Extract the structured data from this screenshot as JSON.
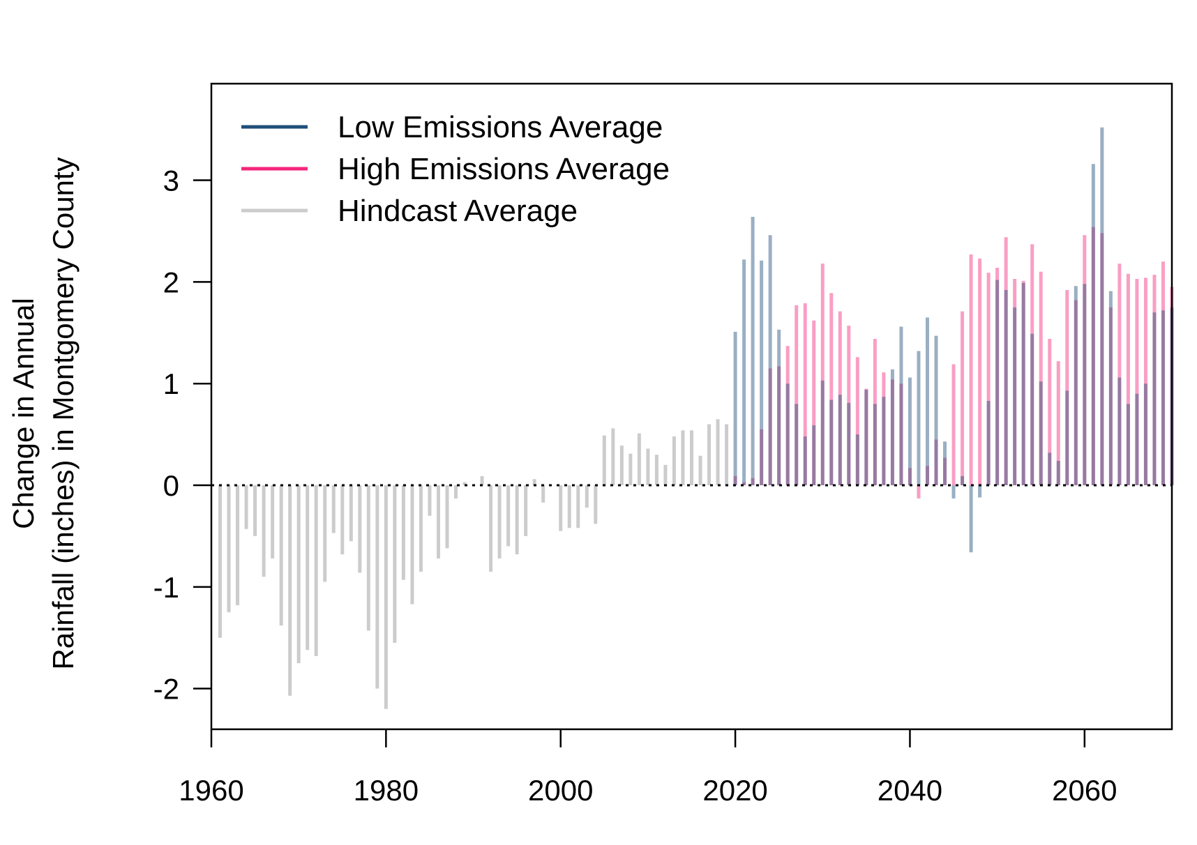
{
  "chart_data": {
    "type": "bar",
    "ylabel_line1": "Change in Annual",
    "ylabel_line2": "Rainfall (inches) in Montgomery County",
    "xlim": [
      1960,
      2070
    ],
    "ylim": [
      -2.4,
      3.95
    ],
    "x_ticks": [
      1960,
      1980,
      2000,
      2020,
      2040,
      2060
    ],
    "y_ticks": [
      -2,
      -1,
      0,
      1,
      2,
      3
    ],
    "zero_line": "dotted",
    "grid": false,
    "legend_position": "top-left",
    "series": [
      {
        "name": "Hindcast Average",
        "color": "#cccccc",
        "x": [
          1961,
          1962,
          1963,
          1964,
          1965,
          1966,
          1967,
          1968,
          1969,
          1970,
          1971,
          1972,
          1973,
          1974,
          1975,
          1976,
          1977,
          1978,
          1979,
          1980,
          1981,
          1982,
          1983,
          1984,
          1985,
          1986,
          1987,
          1988,
          1989,
          1990,
          1991,
          1992,
          1993,
          1994,
          1995,
          1996,
          1997,
          1998,
          1999,
          2000,
          2001,
          2002,
          2003,
          2004,
          2005,
          2006,
          2007,
          2008,
          2009,
          2010,
          2011,
          2012,
          2013,
          2014,
          2015,
          2016,
          2017,
          2018,
          2019
        ],
        "values": [
          -1.5,
          -1.25,
          -1.18,
          -0.43,
          -0.5,
          -0.9,
          -0.72,
          -1.38,
          -2.07,
          -1.75,
          -1.62,
          -1.68,
          -0.95,
          -0.47,
          -0.68,
          -0.55,
          -0.86,
          -1.43,
          -2.0,
          -2.2,
          -1.55,
          -0.93,
          -1.17,
          -0.85,
          -0.3,
          -0.72,
          -0.62,
          -0.13,
          0.03,
          0.0,
          0.09,
          -0.85,
          -0.72,
          -0.6,
          -0.68,
          -0.5,
          0.06,
          -0.17,
          0.0,
          -0.45,
          -0.42,
          -0.42,
          -0.22,
          -0.38,
          0.49,
          0.56,
          0.39,
          0.31,
          0.51,
          0.36,
          0.3,
          0.2,
          0.48,
          0.54,
          0.54,
          0.29,
          0.6,
          0.65,
          0.6
        ]
      },
      {
        "name": "High Emissions Average",
        "color": "#f4277c",
        "x": [
          2020,
          2021,
          2022,
          2023,
          2024,
          2025,
          2026,
          2027,
          2028,
          2029,
          2030,
          2031,
          2032,
          2033,
          2034,
          2035,
          2036,
          2037,
          2038,
          2039,
          2040,
          2041,
          2042,
          2043,
          2044,
          2045,
          2046,
          2047,
          2048,
          2049,
          2050,
          2051,
          2052,
          2053,
          2054,
          2055,
          2056,
          2057,
          2058,
          2059,
          2060,
          2061,
          2062,
          2063,
          2064,
          2065,
          2066,
          2067,
          2068,
          2069,
          2070
        ],
        "values": [
          0.09,
          0.03,
          0.07,
          0.55,
          1.15,
          1.17,
          1.37,
          1.77,
          1.79,
          1.62,
          2.18,
          1.89,
          1.71,
          1.57,
          1.26,
          0.95,
          1.44,
          1.11,
          1.04,
          1.0,
          0.17,
          -0.13,
          0.19,
          0.45,
          0.27,
          1.19,
          1.71,
          2.27,
          2.23,
          2.09,
          2.14,
          2.44,
          2.03,
          2.01,
          2.37,
          2.1,
          1.44,
          1.22,
          1.92,
          1.82,
          2.46,
          2.54,
          2.48,
          1.75,
          2.18,
          2.08,
          2.03,
          2.04,
          2.07,
          2.2,
          1.95
        ]
      },
      {
        "name": "Low Emissions Average",
        "color": "#1f4e79",
        "x": [
          2020,
          2021,
          2022,
          2023,
          2024,
          2025,
          2026,
          2027,
          2028,
          2029,
          2030,
          2031,
          2032,
          2033,
          2034,
          2035,
          2036,
          2037,
          2038,
          2039,
          2040,
          2041,
          2042,
          2043,
          2044,
          2045,
          2046,
          2047,
          2048,
          2049,
          2050,
          2051,
          2052,
          2053,
          2054,
          2055,
          2056,
          2057,
          2058,
          2059,
          2060,
          2061,
          2062,
          2063,
          2064,
          2065,
          2066,
          2067,
          2068,
          2069,
          2070
        ],
        "values": [
          1.51,
          2.22,
          2.64,
          2.21,
          2.46,
          1.53,
          1.0,
          0.8,
          0.48,
          0.59,
          1.03,
          0.84,
          0.89,
          0.81,
          0.5,
          0.94,
          0.8,
          0.87,
          1.14,
          1.56,
          1.06,
          1.32,
          1.65,
          1.47,
          0.43,
          -0.13,
          0.09,
          -0.66,
          -0.12,
          0.83,
          2.02,
          1.92,
          1.75,
          1.99,
          1.49,
          1.02,
          0.32,
          0.24,
          0.93,
          1.96,
          1.98,
          3.16,
          3.52,
          1.91,
          1.06,
          0.8,
          0.9,
          1.0,
          1.7,
          1.72,
          1.75
        ]
      }
    ]
  }
}
